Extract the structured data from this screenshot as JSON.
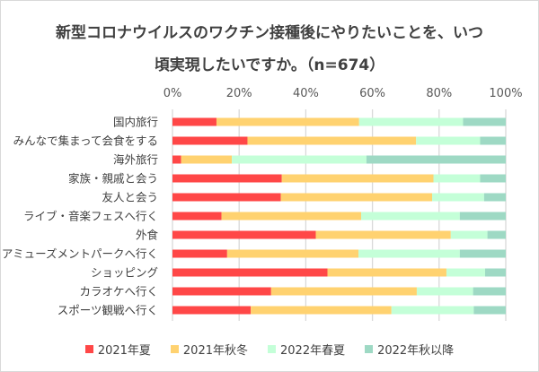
{
  "chart_data": {
    "type": "bar",
    "orientation": "horizontal",
    "stacked": "100%",
    "title_line1": "新型コロナウイルスのワクチン接種後にやりたいことを、いつ",
    "title_line2": "頃実現したいですか。（n=674）",
    "categories": [
      "国内旅行",
      "みんなで集まって会食をする",
      "海外旅行",
      "家族・親戚と会う",
      "友人と会う",
      "ライブ・音楽フェスへ行く",
      "外食",
      "アミューズメントパークへ行く",
      "ショッピング",
      "カラオケへ行く",
      "スポーツ観戦へ行く"
    ],
    "series": [
      {
        "name": "2021年夏",
        "color": "#FF4747",
        "values": [
          13.2,
          22.5,
          2.6,
          32.8,
          32.5,
          14.7,
          43.0,
          16.4,
          46.5,
          29.6,
          23.5
        ]
      },
      {
        "name": "2021年秋冬",
        "color": "#FFD270",
        "values": [
          42.8,
          50.6,
          15.2,
          45.5,
          45.4,
          41.9,
          40.5,
          39.4,
          35.7,
          43.7,
          42.2
        ]
      },
      {
        "name": "2022年春夏",
        "color": "#C4FFD8",
        "values": [
          31.2,
          19.2,
          40.4,
          14.0,
          15.6,
          29.6,
          11.0,
          30.4,
          11.6,
          16.9,
          24.7
        ]
      },
      {
        "name": "2022年秋以降",
        "color": "#9ED9C4",
        "values": [
          12.8,
          7.7,
          41.8,
          7.7,
          6.5,
          13.8,
          5.5,
          13.8,
          6.2,
          9.8,
          9.6
        ]
      }
    ],
    "xlim": [
      0,
      100
    ],
    "x_ticks": [
      "0%",
      "20%",
      "40%",
      "60%",
      "80%",
      "100%"
    ],
    "grid": true,
    "legend_position": "bottom"
  }
}
